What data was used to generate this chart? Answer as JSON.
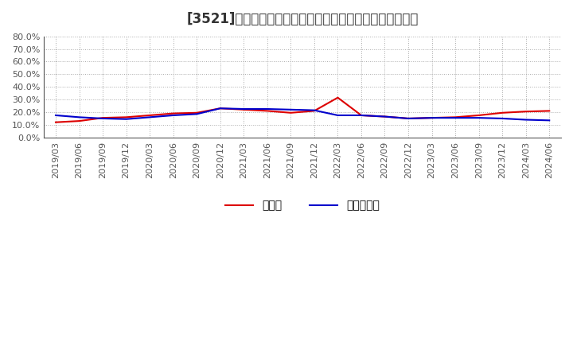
{
  "title": "[3521]　現顔金、有利子負債の総資産に対する比率の推移",
  "x_labels": [
    "2019/03",
    "2019/06",
    "2019/09",
    "2019/12",
    "2020/03",
    "2020/06",
    "2020/09",
    "2020/12",
    "2021/03",
    "2021/06",
    "2021/09",
    "2021/12",
    "2022/03",
    "2022/06",
    "2022/09",
    "2022/12",
    "2023/03",
    "2023/06",
    "2023/09",
    "2023/12",
    "2024/03",
    "2024/06"
  ],
  "cash": [
    0.12,
    0.13,
    0.155,
    0.16,
    0.175,
    0.19,
    0.195,
    0.23,
    0.22,
    0.21,
    0.195,
    0.21,
    0.315,
    0.175,
    0.165,
    0.15,
    0.155,
    0.16,
    0.175,
    0.195,
    0.205,
    0.21
  ],
  "debt": [
    0.175,
    0.16,
    0.15,
    0.145,
    0.16,
    0.175,
    0.185,
    0.23,
    0.225,
    0.225,
    0.22,
    0.215,
    0.175,
    0.175,
    0.165,
    0.15,
    0.155,
    0.155,
    0.155,
    0.15,
    0.14,
    0.135
  ],
  "cash_color": "#dd0000",
  "debt_color": "#0000cc",
  "cash_label": "現顔金",
  "debt_label": "有利子負債",
  "ylim": [
    0.0,
    0.8
  ],
  "yticks": [
    0.0,
    0.1,
    0.2,
    0.3,
    0.4,
    0.5,
    0.6,
    0.7,
    0.8
  ],
  "bg_color": "#ffffff",
  "plot_bg_color": "#ffffff",
  "grid_color": "#aaaaaa",
  "title_fontsize": 12,
  "legend_fontsize": 10,
  "tick_fontsize": 8
}
